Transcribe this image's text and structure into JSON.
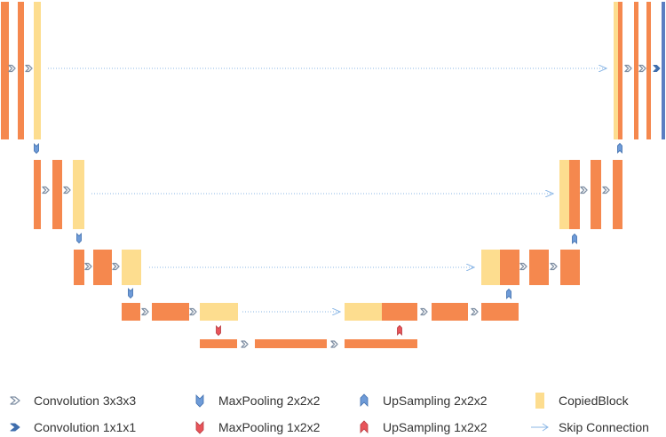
{
  "colors": {
    "conv_block": "#F5884E",
    "copied_block": "#FDDD8F",
    "final_block": "#5B7EC2",
    "skip_arrow": "#8BB7E6",
    "conv_icon": "#7F8FA3",
    "conv1_icon": "#3F6EAD",
    "pool_blue": "#6E9BD8",
    "pool_red": "#E8545A"
  },
  "legend": {
    "conv3": {
      "label": "Convolution 3x3x3",
      "icon": "chevron-outline-icon"
    },
    "conv1": {
      "label": "Convolution 1x1x1",
      "icon": "chevron-filled-icon"
    },
    "maxpool222": {
      "label": "MaxPooling 2x2x2",
      "icon": "down-arrow-blue-icon"
    },
    "maxpool122": {
      "label": "MaxPooling 1x2x2",
      "icon": "down-arrow-red-icon"
    },
    "upsample222": {
      "label": "UpSampling 2x2x2",
      "icon": "up-arrow-blue-icon"
    },
    "upsample122": {
      "label": "UpSampling 1x2x2",
      "icon": "up-arrow-red-icon"
    },
    "copied": {
      "label": "CopiedBlock",
      "icon": "copied-block-swatch"
    },
    "skip": {
      "label": "Skip Connection",
      "icon": "skip-arrow-icon"
    }
  }
}
